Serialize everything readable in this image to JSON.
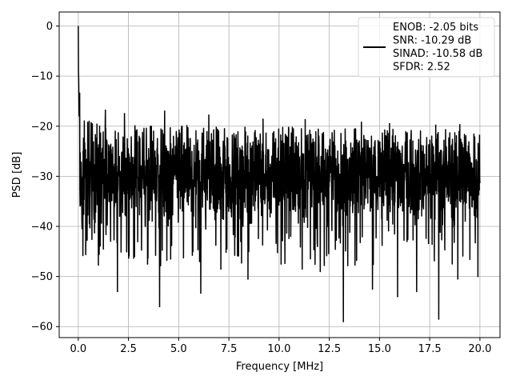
{
  "chart_data": {
    "type": "line",
    "title": "",
    "xlabel": "Frequency [MHz]",
    "ylabel": "PSD [dB]",
    "xlim": [
      -0.95,
      21.0
    ],
    "ylim": [
      -62.2,
      2.8
    ],
    "xticks": [
      0.0,
      2.5,
      5.0,
      7.5,
      10.0,
      12.5,
      15.0,
      17.5,
      20.0
    ],
    "xtick_labels": [
      "0.0",
      "2.5",
      "5.0",
      "7.5",
      "10.0",
      "12.5",
      "15.0",
      "17.5",
      "20.0"
    ],
    "yticks": [
      0,
      -10,
      -20,
      -30,
      -40,
      -50,
      -60
    ],
    "ytick_labels": [
      "0",
      "−10",
      "−20",
      "−30",
      "−40",
      "−50",
      "−60"
    ],
    "grid": true,
    "legend_position": "top-right",
    "line_color": "#000000",
    "series": [
      {
        "name": "ENOB: -2.05 bits\nSNR: -10.29 dB\nSINAD: -10.58 dB\nSFDR: 2.52",
        "x_range": [
          0.0,
          20.0
        ],
        "summary": {
          "peak_value_at_dc": 0.0,
          "near_dc_envelope": [
            [
              0.0,
              0.0
            ],
            [
              0.02,
              -8.0
            ],
            [
              0.05,
              -11.0
            ],
            [
              0.1,
              -13.5
            ],
            [
              0.2,
              -16.0
            ],
            [
              0.4,
              -18.5
            ],
            [
              1.0,
              -19.5
            ]
          ],
          "upper_envelope_db": -19.5,
          "median_db": -29.5,
          "lower_envelope_db": -42.0
        },
        "notable_points": [
          [
            0.08,
            -32.5
          ],
          [
            0.2,
            -37.0
          ],
          [
            0.4,
            -39.0
          ],
          [
            1.25,
            -44.5
          ],
          [
            1.95,
            -53.0
          ],
          [
            2.8,
            -46.0
          ],
          [
            3.45,
            -47.5
          ],
          [
            4.05,
            -56.0
          ],
          [
            4.6,
            -46.5
          ],
          [
            6.1,
            -53.3
          ],
          [
            7.1,
            -48.5
          ],
          [
            8.45,
            -50.5
          ],
          [
            10.1,
            -47.5
          ],
          [
            11.15,
            -48.5
          ],
          [
            12.05,
            -49.0
          ],
          [
            13.2,
            -59.0
          ],
          [
            14.65,
            -52.5
          ],
          [
            15.9,
            -54.0
          ],
          [
            16.85,
            -53.0
          ],
          [
            17.95,
            -58.5
          ],
          [
            18.9,
            -50.5
          ],
          [
            19.9,
            -50.0
          ],
          [
            1.35,
            -16.8
          ],
          [
            2.3,
            -17.5
          ],
          [
            4.3,
            -17.0
          ],
          [
            6.5,
            -17.8
          ],
          [
            9.2,
            -18.6
          ],
          [
            11.3,
            -18.7
          ],
          [
            14.1,
            -19.2
          ],
          [
            15.5,
            -19.5
          ],
          [
            17.8,
            -19.8
          ],
          [
            19.0,
            -19.7
          ]
        ]
      }
    ]
  }
}
